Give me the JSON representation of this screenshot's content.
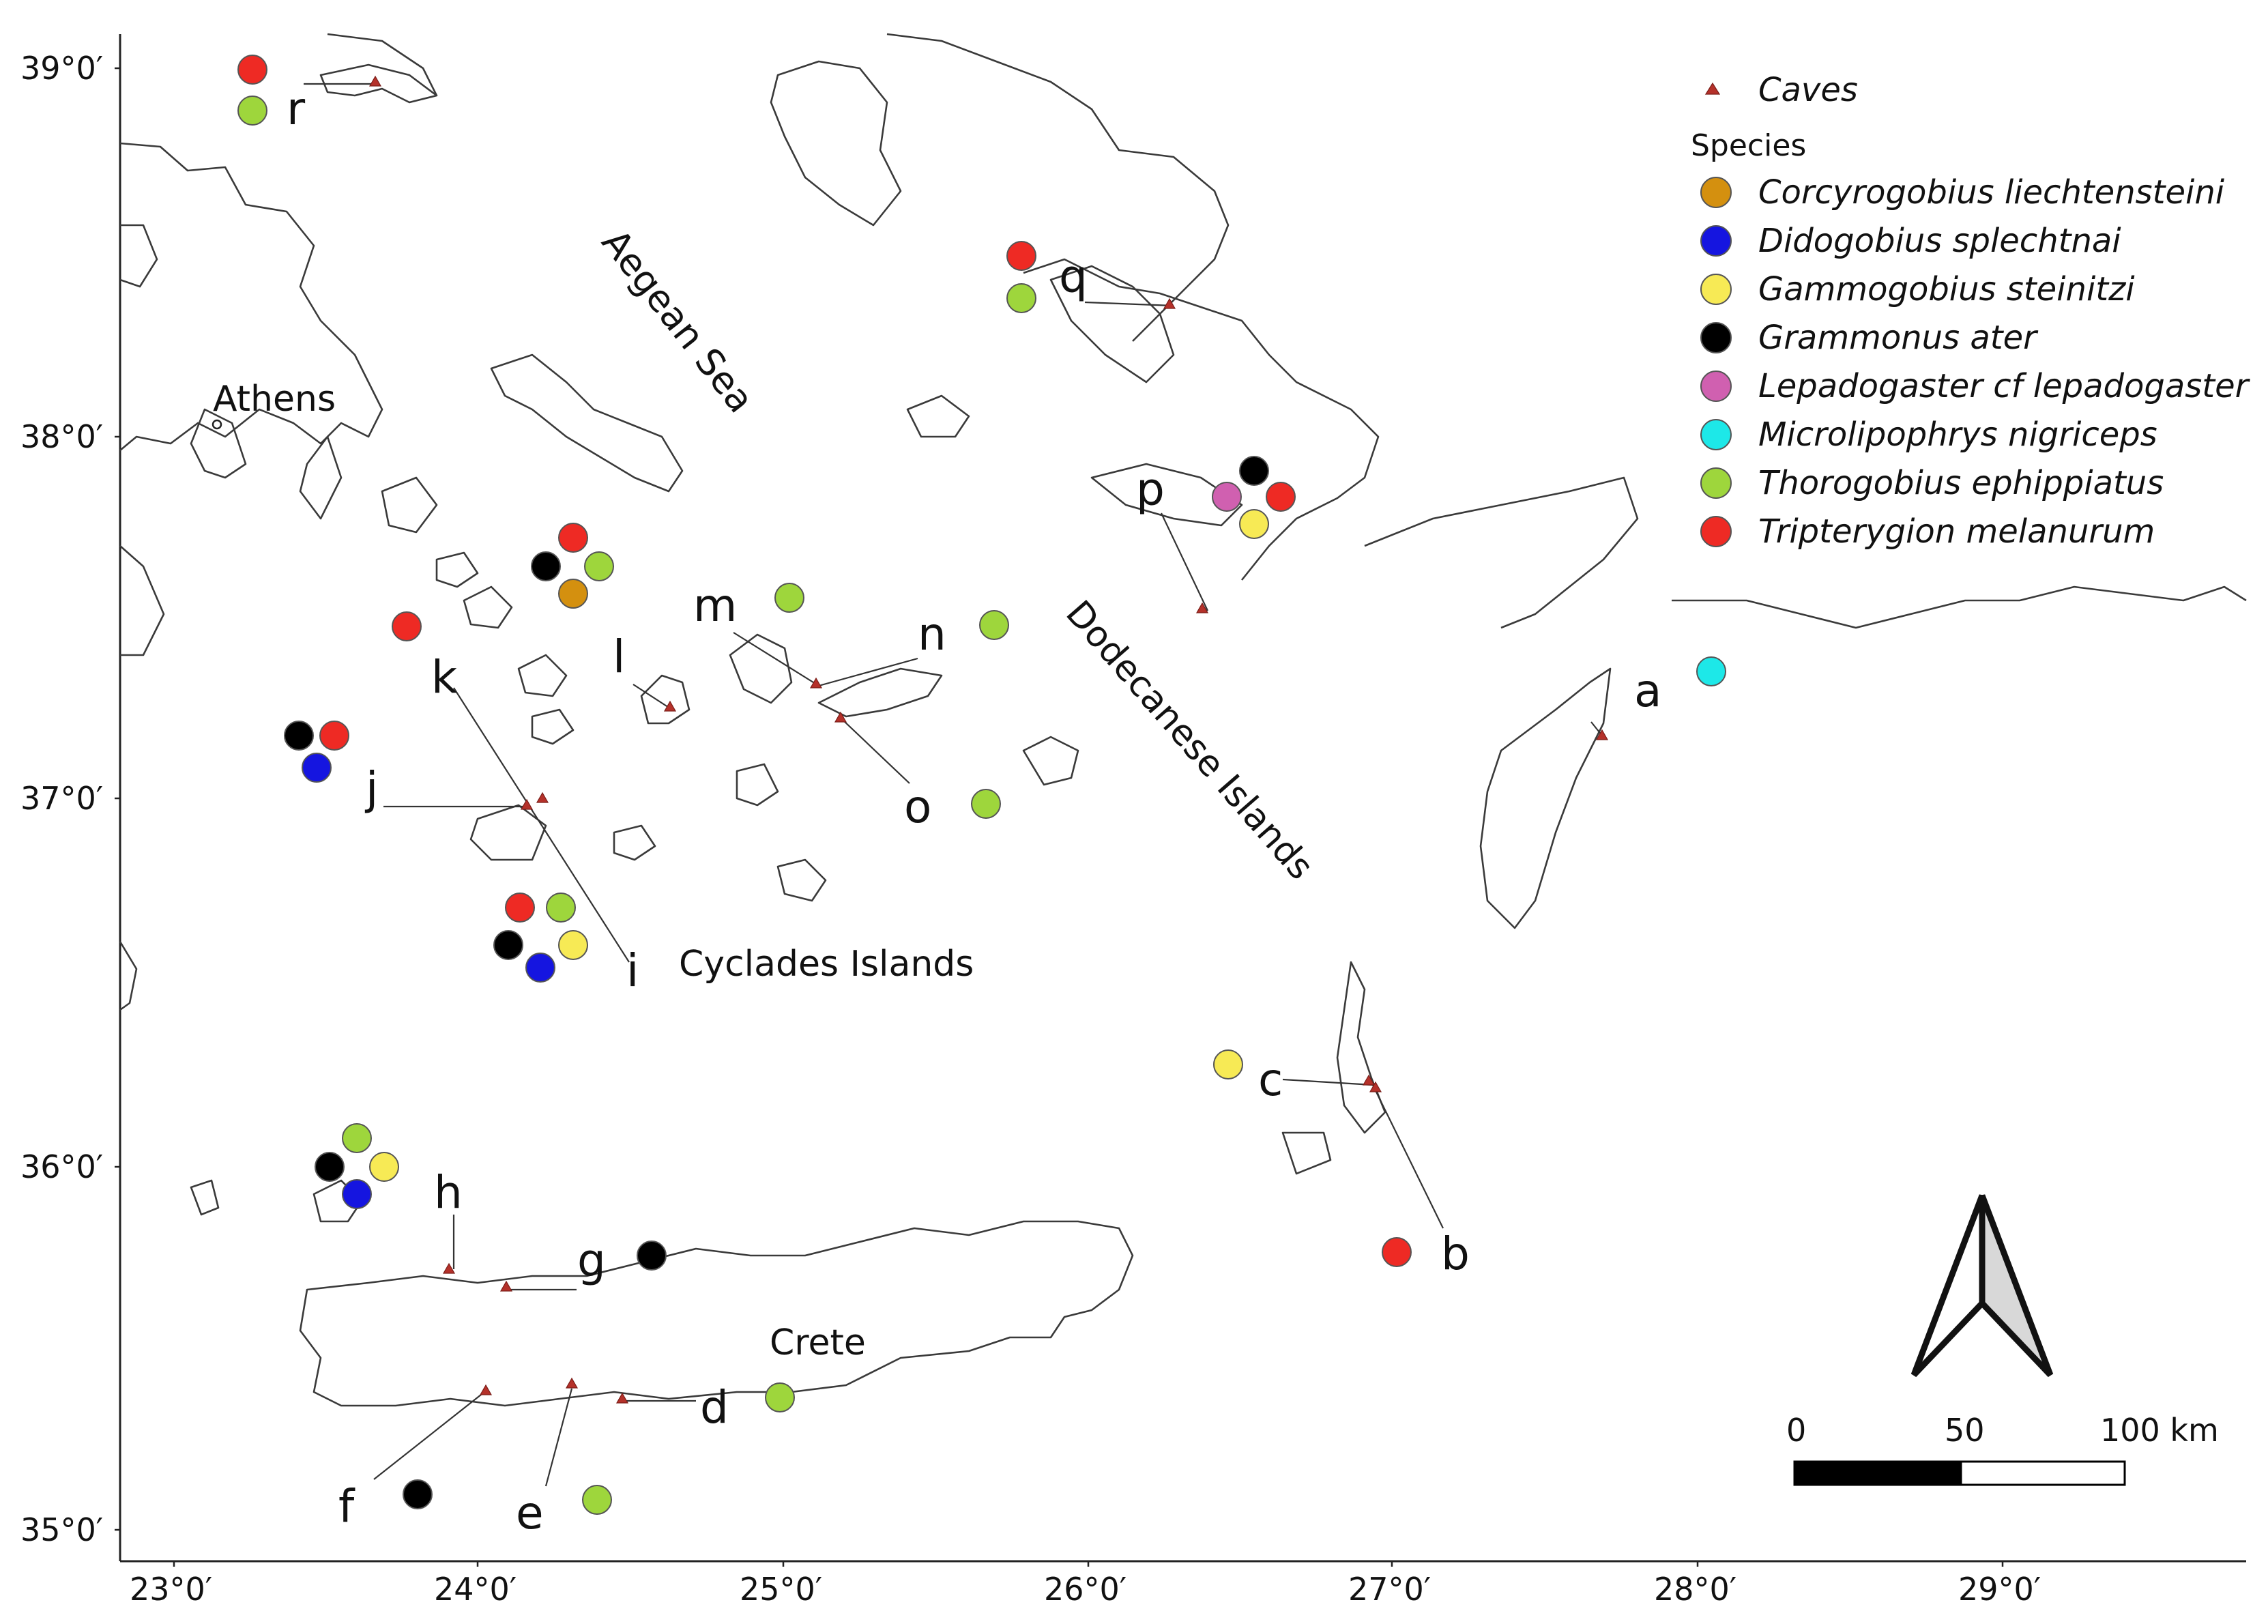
{
  "axes": {
    "lon_labels": [
      "23°0′",
      "24°0′",
      "25°0′",
      "26°0′",
      "27°0′",
      "28°0′",
      "29°0′"
    ],
    "lat_labels": [
      "39°0′",
      "38°0′",
      "37°0′",
      "36°0′",
      "35°0′"
    ]
  },
  "place_labels": {
    "athens": "Athens",
    "aegean": "Aegean Sea",
    "cyclades": "Cyclades Islands",
    "dodecanese": "Dodecanese Islands",
    "crete": "Crete"
  },
  "legend": {
    "caves_label": "Caves",
    "species_heading": "Species",
    "species": [
      {
        "name": "Corcyrogobius liechtensteini",
        "color": "#d4900f"
      },
      {
        "name": "Didogobius splechtnai",
        "color": "#1515e0"
      },
      {
        "name": "Gammogobius steinitzi",
        "color": "#f7ea55"
      },
      {
        "name": "Grammonus ater",
        "color": "#000000"
      },
      {
        "name": "Lepadogaster cf lepadogaster",
        "color": "#d060b0"
      },
      {
        "name": "Microlipophrys nigriceps",
        "color": "#1de8e8"
      },
      {
        "name": "Thorogobius ephippiatus",
        "color": "#9ed63c"
      },
      {
        "name": "Tripterygion melanurum",
        "color": "#ee2a24"
      }
    ]
  },
  "cave_sites": [
    {
      "id": "a",
      "species": [
        "Microlipophrys nigriceps"
      ]
    },
    {
      "id": "b",
      "species": [
        "Tripterygion melanurum"
      ]
    },
    {
      "id": "c",
      "species": [
        "Gammogobius steinitzi"
      ]
    },
    {
      "id": "d",
      "species": [
        "Thorogobius ephippiatus"
      ]
    },
    {
      "id": "e",
      "species": [
        "Thorogobius ephippiatus"
      ]
    },
    {
      "id": "f",
      "species": [
        "Grammonus ater"
      ]
    },
    {
      "id": "g",
      "species": [
        "Grammonus ater"
      ]
    },
    {
      "id": "h",
      "species": [
        "Thorogobius ephippiatus",
        "Grammonus ater",
        "Gammogobius steinitzi",
        "Didogobius splechtnai"
      ]
    },
    {
      "id": "i",
      "species": [
        "Tripterygion melanurum",
        "Thorogobius ephippiatus",
        "Grammonus ater",
        "Gammogobius steinitzi",
        "Didogobius splechtnai"
      ]
    },
    {
      "id": "j",
      "species": [
        "Grammonus ater",
        "Tripterygion melanurum",
        "Didogobius splechtnai"
      ]
    },
    {
      "id": "k",
      "species": [
        "Tripterygion melanurum"
      ]
    },
    {
      "id": "l",
      "species": [
        "Tripterygion melanurum",
        "Grammonus ater",
        "Thorogobius ephippiatus",
        "Corcyrogobius liechtensteini"
      ]
    },
    {
      "id": "m",
      "species": [
        "Thorogobius ephippiatus"
      ]
    },
    {
      "id": "n",
      "species": [
        "Thorogobius ephippiatus"
      ]
    },
    {
      "id": "o",
      "species": [
        "Thorogobius ephippiatus"
      ]
    },
    {
      "id": "p",
      "species": [
        "Grammonus ater",
        "Lepadogaster cf lepadogaster",
        "Tripterygion melanurum",
        "Gammogobius steinitzi"
      ]
    },
    {
      "id": "q",
      "species": [
        "Tripterygion melanurum",
        "Thorogobius ephippiatus"
      ]
    },
    {
      "id": "r",
      "species": [
        "Tripterygion melanurum",
        "Thorogobius ephippiatus"
      ]
    }
  ],
  "scale_bar": {
    "labels": [
      "0",
      "50",
      "100 km"
    ]
  }
}
